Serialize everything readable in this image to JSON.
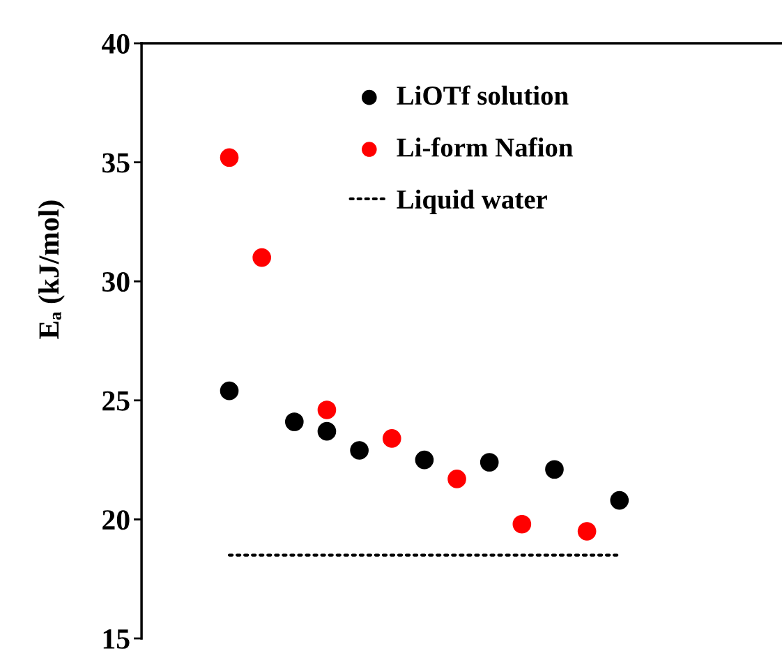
{
  "chart_data": {
    "type": "scatter",
    "ylabel": "Eₐ (kJ/mol)",
    "categories": [
      null,
      null,
      null,
      null,
      null,
      null,
      null,
      null,
      null,
      null,
      null,
      null,
      null
    ],
    "ylim": [
      15,
      40
    ],
    "yticks": [
      15,
      20,
      25,
      30,
      35,
      40
    ],
    "tick_labels": "y",
    "marker": "circle",
    "legend": "top",
    "grid": false,
    "series": [
      {
        "name": "LiOTf solution",
        "color": "#000000",
        "values": [
          25.4,
          null,
          24.1,
          23.7,
          22.9,
          null,
          22.5,
          null,
          22.4,
          null,
          22.1,
          null,
          20.8
        ]
      },
      {
        "name": "Li-form Nafion",
        "color": "#ff0000",
        "values": [
          35.2,
          31.0,
          null,
          24.6,
          null,
          23.4,
          null,
          21.7,
          null,
          19.8,
          null,
          19.5,
          null
        ]
      },
      {
        "name": "Liquid water",
        "type": "line",
        "color": "#000000",
        "line_style": "dotted",
        "marker": "none",
        "values": [
          18.5,
          18.5,
          18.5,
          18.5,
          18.5,
          18.5,
          18.5,
          18.5,
          18.5,
          18.5,
          18.5,
          18.5,
          18.5
        ]
      }
    ]
  }
}
